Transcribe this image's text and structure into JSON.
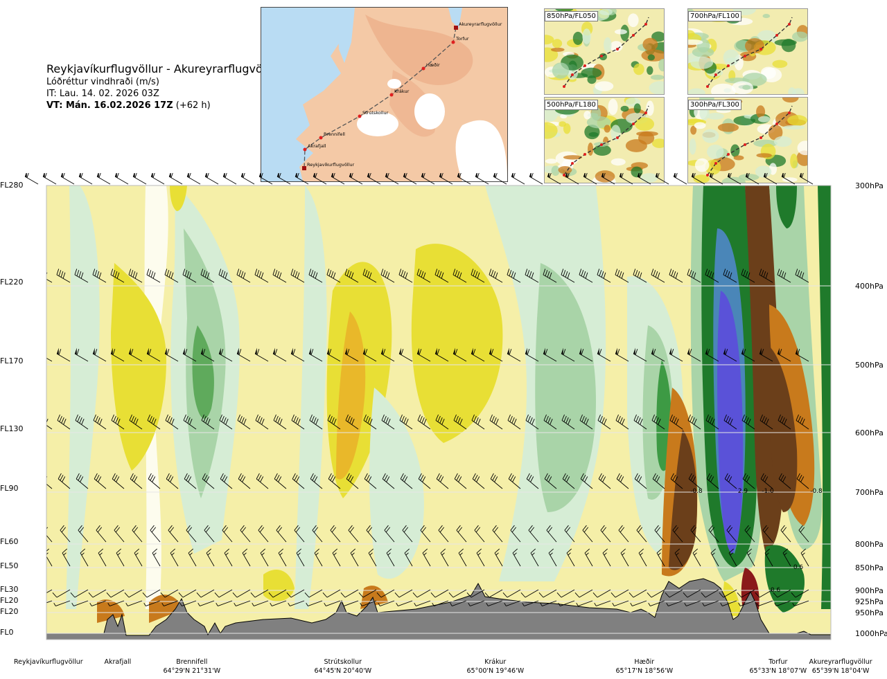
{
  "header": {
    "title": "Reykjavíkurflugvöllur - Akureyrarflugvöllur",
    "subtitle": "Lóðréttur vindhraði (m/s)",
    "issue_time": "IT: Lau. 14. 02. 2026 03Z",
    "valid_time": "VT: Mán. 16.02.2026 17Z",
    "valid_offset": "(+62 h)"
  },
  "map": {
    "route_points": [
      {
        "name": "Akureyrarflugvöllur"
      },
      {
        "name": "Torfur"
      },
      {
        "name": "Hæðir"
      },
      {
        "name": "Krákur"
      },
      {
        "name": "Strútskollur"
      },
      {
        "name": "Brennifell"
      },
      {
        "name": "Akrafjall"
      },
      {
        "name": "Reykjavíkurflugvöllur"
      }
    ],
    "colors": {
      "land": "#f4c9a6",
      "sea": "#b9dcf3",
      "glacier": "#ffffff",
      "route": "#555555",
      "point": "#e02020"
    }
  },
  "thumbnails": [
    {
      "label": "850hPa/FL050"
    },
    {
      "label": "700hPa/FL100"
    },
    {
      "label": "500hPa/FL180"
    },
    {
      "label": "300hPa/FL300"
    }
  ],
  "chart_data": {
    "type": "heatmap",
    "title": "Reykjavíkurflugvöllur - Akureyrarflugvöllur",
    "subtitle": "Lóðréttur vindhraði (m/s)",
    "y_left_labels": [
      "FL280",
      "FL220",
      "FL170",
      "FL130",
      "FL90",
      "FL60",
      "FL50",
      "FL30",
      "FL20",
      "FL20",
      "FL0"
    ],
    "y_right_labels": [
      "300hPa",
      "400hPa",
      "500hPa",
      "600hPa",
      "700hPa",
      "800hPa",
      "850hPa",
      "900hPa",
      "925hPa",
      "950hPa",
      "1000hPa"
    ],
    "pressure_levels_hpa": [
      300,
      400,
      500,
      600,
      700,
      800,
      850,
      900,
      925,
      950,
      1000
    ],
    "x_locations": [
      {
        "name": "Reykjavíkurflugvöllur",
        "coord": ""
      },
      {
        "name": "Akrafjall",
        "coord": ""
      },
      {
        "name": "Brennifell",
        "coord": "64°29'N 21°31'W"
      },
      {
        "name": "Strútskollur",
        "coord": "64°45'N 20°40'W"
      },
      {
        "name": "Krákur",
        "coord": "65°00'N 19°46'W"
      },
      {
        "name": "Hæðir",
        "coord": "65°17'N 18°56'W"
      },
      {
        "name": "Torfur",
        "coord": "65°33'N 18°07'W"
      },
      {
        "name": "Akureyrarflugvöllur",
        "coord": "65°39'N 18°04'W"
      }
    ],
    "contour_labels": [
      "-0.8",
      "2.9",
      "-1.0",
      "-0.8",
      "0.6",
      "0.6"
    ],
    "colors": {
      "strong_down": "#6b3f1a",
      "moderate_down": "#c87a1c",
      "weak_down": "#e8df35",
      "slight_down": "#f5efa8",
      "neutral": "#ffffff",
      "slight_up": "#d6edd5",
      "weak_up": "#a9d4a8",
      "moderate_up": "#3d9a44",
      "strong_up": "#1f7a2b",
      "very_strong_up": "#5050d8",
      "terrain": "#808080"
    },
    "grid": true
  }
}
